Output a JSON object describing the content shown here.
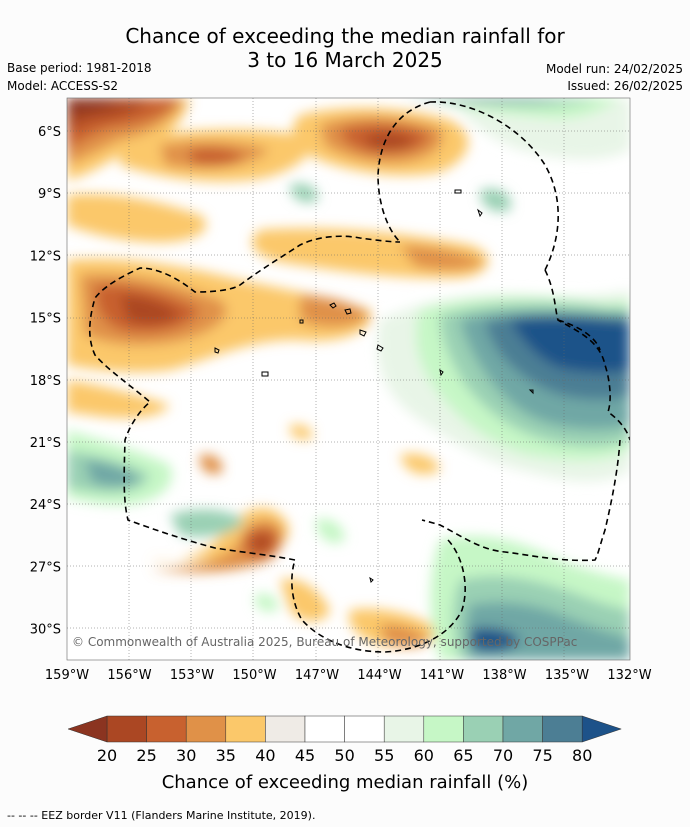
{
  "title_line1": "Chance of exceeding the median rainfall for",
  "title_line2": "3 to 16 March 2025",
  "base_period": "Base period: 1981-2018",
  "model": "Model: ACCESS-S2",
  "model_run": "Model run: 24/02/2025",
  "issued": "Issued: 26/02/2025",
  "lat_labels": [
    "6°S",
    "9°S",
    "12°S",
    "15°S",
    "18°S",
    "21°S",
    "24°S",
    "27°S",
    "30°S"
  ],
  "lon_labels": [
    "159°W",
    "156°W",
    "153°W",
    "150°W",
    "147°W",
    "144°W",
    "141°W",
    "138°W",
    "135°W",
    "132°W"
  ],
  "copyright": "© Commonwealth of Australia 2025, Bureau of Meteorology, supported by COSPPac",
  "colorbar": {
    "ticks": [
      "20",
      "25",
      "30",
      "35",
      "40",
      "45",
      "50",
      "55",
      "60",
      "65",
      "70",
      "75",
      "80"
    ],
    "colors": [
      "#ab4723",
      "#c8612f",
      "#e09148",
      "#fbc86a",
      "#efebe6",
      "#ffffff",
      "#ffffff",
      "#e8f5e7",
      "#c6f7c6",
      "#9ad0b4",
      "#70a7a5",
      "#4c7e94"
    ],
    "low_color": "#8b3420",
    "high_color": "#1d5289",
    "label": "Chance of exceeding median rainfall (%)"
  },
  "footer": "--  --  -- EEZ border V11 (Flanders Marine Institute, 2019)."
}
